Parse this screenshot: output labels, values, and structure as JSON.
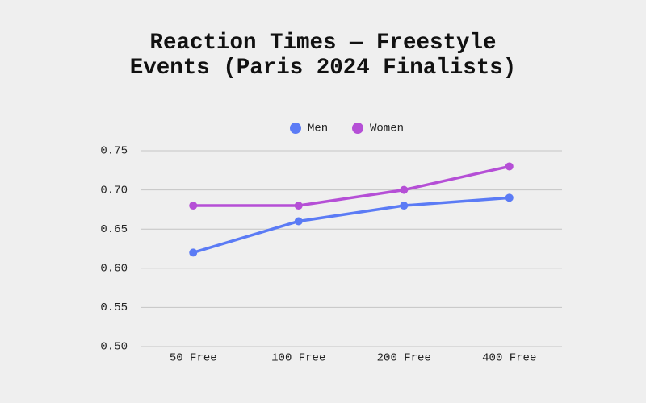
{
  "chart_data": {
    "type": "line",
    "title": "Reaction Times — Freestyle Events (Paris 2024 Finalists)",
    "categories": [
      "50 Free",
      "100 Free",
      "200 Free",
      "400 Free"
    ],
    "series": [
      {
        "name": "Men",
        "color": "#5b7bf5",
        "values": [
          0.62,
          0.66,
          0.68,
          0.69
        ]
      },
      {
        "name": "Women",
        "color": "#b54fd6",
        "values": [
          0.68,
          0.68,
          0.7,
          0.73
        ]
      }
    ],
    "ylim": [
      0.5,
      0.75
    ],
    "yticks": [
      {
        "value": 0.5,
        "label": "0.50"
      },
      0.55,
      {
        "value": 0.6,
        "label": "0.60"
      },
      0.65,
      {
        "value": 0.7,
        "label": "0.70"
      },
      0.75
    ],
    "grid": true,
    "legend": "top"
  }
}
